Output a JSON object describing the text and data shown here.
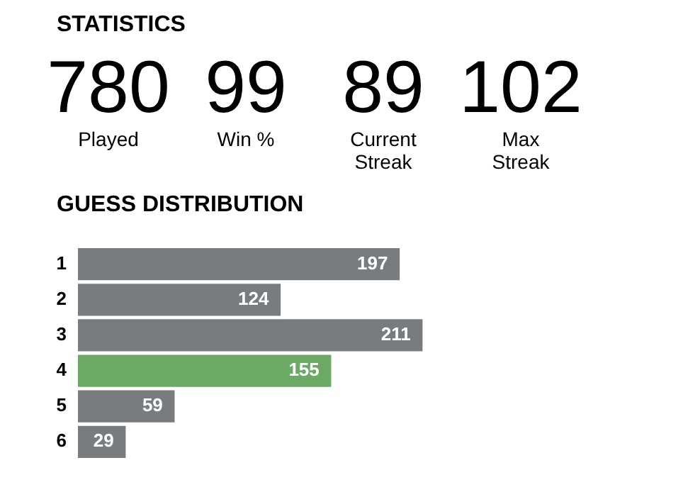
{
  "chart_data": [
    {
      "type": "other",
      "title": "STATISTICS",
      "annotations": [
        "780",
        "Played",
        "99",
        "Win %",
        "89",
        "Current Streak",
        "102",
        "Max Streak"
      ]
    },
    {
      "type": "bar",
      "orientation": "horizontal",
      "title": "GUESS DISTRIBUTION",
      "categories": [
        "1",
        "2",
        "3",
        "4",
        "5",
        "6"
      ],
      "values": [
        197,
        124,
        211,
        155,
        59,
        29
      ],
      "colors": [
        "#787c7e",
        "#787c7e",
        "#787c7e",
        "#6aaa64",
        "#787c7e",
        "#787c7e"
      ],
      "data_labels": true
    }
  ]
}
